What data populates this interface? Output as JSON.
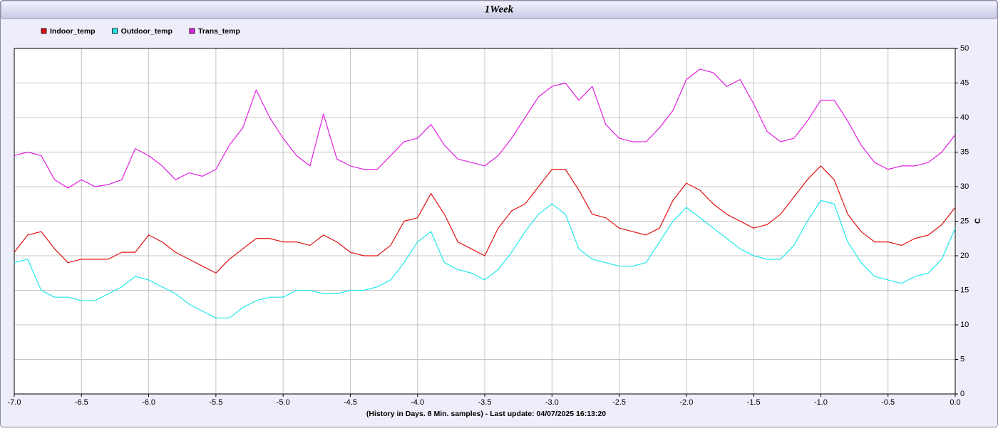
{
  "chart_data": {
    "type": "line",
    "title": "1Week",
    "x_label": "(History in Days. 8 Min. samples) - Last update: 04/07/2025 16:13:20",
    "y_label": "C",
    "grid": true,
    "legend": "top-left",
    "xlim": [
      -7,
      0
    ],
    "ylim": [
      0,
      50
    ],
    "xticks": [
      {
        "value": -7,
        "label": "-7.0"
      },
      -6.5,
      {
        "value": -6,
        "label": "-6.0"
      },
      -5.5,
      {
        "value": -5,
        "label": "-5.0"
      },
      -4.5,
      {
        "value": -4,
        "label": "-4.0"
      },
      -3.5,
      {
        "value": -3,
        "label": "-3.0"
      },
      -2.5,
      {
        "value": -2,
        "label": "-2.0"
      },
      -1.5,
      {
        "value": -1,
        "label": "-1.0"
      },
      -0.5,
      {
        "value": 0,
        "label": "0.0"
      }
    ],
    "yticks": [
      0,
      5,
      10,
      15,
      20,
      25,
      30,
      35,
      40,
      45,
      50
    ],
    "x": [
      -7,
      -6.9,
      -6.8,
      -6.7,
      -6.6,
      -6.5,
      -6.4,
      -6.3,
      -6.2,
      -6.1,
      -6,
      -5.9,
      -5.8,
      -5.7,
      -5.6,
      -5.5,
      -5.4,
      -5.3,
      -5.2,
      -5.1,
      -5,
      -4.9,
      -4.8,
      -4.7,
      -4.6,
      -4.5,
      -4.4,
      -4.3,
      -4.2,
      -4.1,
      -4,
      -3.9,
      -3.8,
      -3.7,
      -3.6,
      -3.5,
      -3.4,
      -3.3,
      -3.2,
      -3.1,
      -3,
      -2.9,
      -2.8,
      -2.7,
      -2.6,
      -2.5,
      -2.4,
      -2.3,
      -2.2,
      -2.1,
      -2,
      -1.9,
      -1.8,
      -1.7,
      -1.6,
      -1.5,
      -1.4,
      -1.3,
      -1.2,
      -1.1,
      -1,
      -0.9,
      -0.8,
      -0.7,
      -0.6,
      -0.5,
      -0.4,
      -0.3,
      -0.2,
      -0.1,
      0
    ],
    "series": [
      {
        "name": "Indoor_temp",
        "color": "#e01010",
        "values": [
          20.5,
          23,
          23.5,
          21,
          19,
          19.5,
          19.5,
          19.5,
          20.5,
          20.5,
          23,
          22,
          20.5,
          19.5,
          18.5,
          17.5,
          19.5,
          21,
          22.5,
          22.5,
          22,
          22,
          21.5,
          23,
          22,
          20.5,
          20,
          20,
          21.5,
          25,
          25.5,
          29,
          26,
          22,
          21,
          20,
          24,
          26.5,
          27.5,
          30,
          32.5,
          32.5,
          29.5,
          26,
          25.5,
          24,
          23.5,
          23,
          24,
          28,
          30.5,
          29.5,
          27.5,
          26,
          25,
          24,
          24.5,
          26,
          28.5,
          31,
          33,
          31,
          26,
          23.5,
          22,
          22,
          21.5,
          22.5,
          23,
          24.5,
          27
        ]
      },
      {
        "name": "Outdoor_temp",
        "color": "#20e8e8",
        "values": [
          19,
          19.5,
          15,
          14,
          14,
          13.5,
          13.5,
          14.5,
          15.5,
          17,
          16.5,
          15.5,
          14.5,
          13,
          12,
          11,
          11,
          12.5,
          13.5,
          14,
          14,
          15,
          15,
          14.5,
          14.5,
          15,
          15,
          15.5,
          16.5,
          19,
          22,
          23.5,
          19,
          18,
          17.5,
          16.5,
          18,
          20.5,
          23.5,
          26,
          27.5,
          26,
          21,
          19.5,
          19,
          18.5,
          18.5,
          19,
          22,
          25,
          27,
          25.5,
          24,
          22.5,
          21,
          20,
          19.5,
          19.5,
          21.5,
          25,
          28,
          27.5,
          22,
          19,
          17,
          16.5,
          16,
          17,
          17.5,
          19.5,
          24
        ]
      },
      {
        "name": "Trans_temp",
        "color": "#e020e0",
        "values": [
          34.5,
          35,
          34.5,
          31,
          29.8,
          31,
          30,
          30.3,
          31,
          35.5,
          34.5,
          33,
          31,
          32,
          31.5,
          32.5,
          36,
          38.5,
          44,
          40,
          37,
          34.5,
          33,
          40.5,
          34,
          33,
          32.5,
          32.5,
          34.5,
          36.5,
          37,
          39,
          36,
          34,
          33.5,
          33,
          34.5,
          37,
          40,
          43,
          44.5,
          45,
          42.5,
          44.5,
          39,
          37,
          36.5,
          36.5,
          38.5,
          41,
          45.5,
          47,
          46.5,
          44.5,
          45.5,
          42,
          38,
          36.5,
          37,
          39.5,
          42.5,
          42.5,
          39.5,
          36,
          33.5,
          32.5,
          33,
          33,
          33.5,
          35,
          37.5
        ]
      }
    ]
  }
}
